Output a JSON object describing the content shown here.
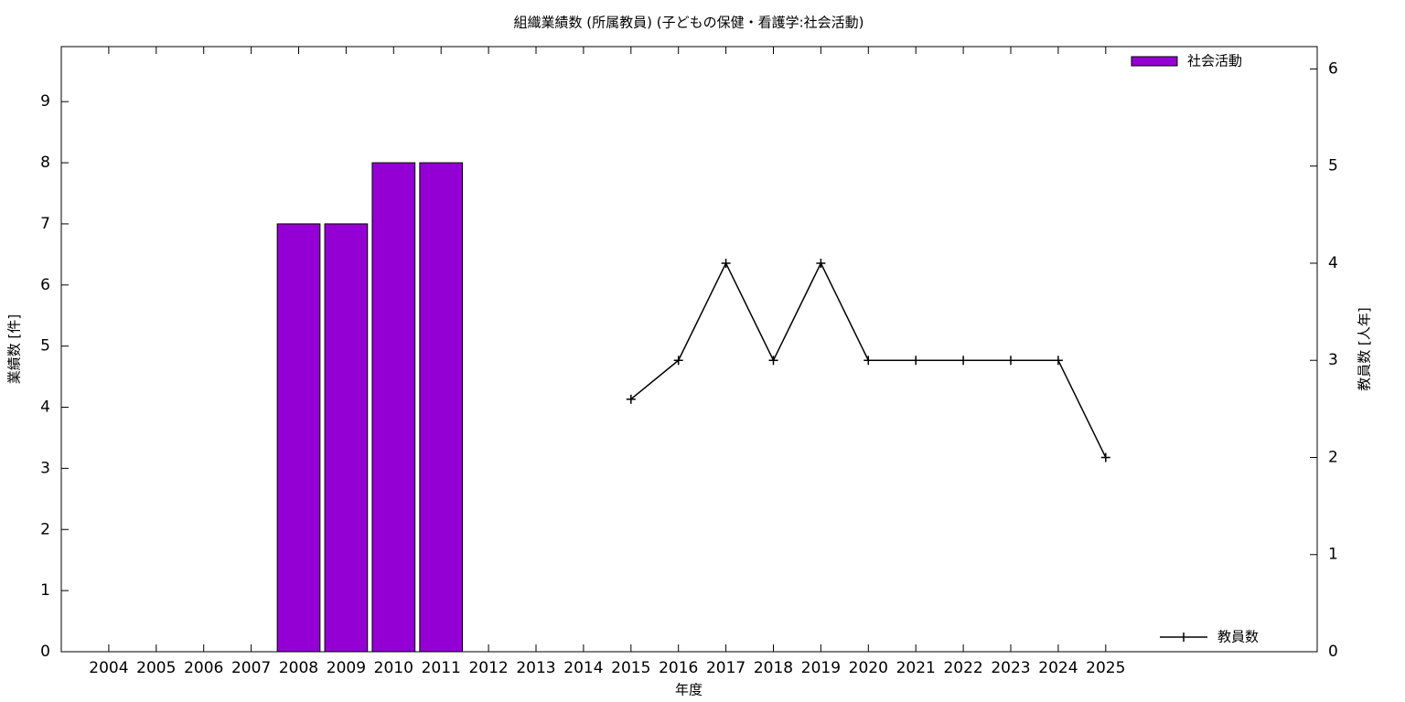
{
  "chart_data": {
    "type": "bar",
    "title": "組織業績数 (所属教員) (子どもの保健・看護学:社会活動)",
    "x_label": "年度",
    "y_label": "業績数 [件]",
    "y2_label": "教員数 [人年]",
    "categories": [
      "2004",
      "2005",
      "2006",
      "2007",
      "2008",
      "2009",
      "2010",
      "2011",
      "2012",
      "2013",
      "2014",
      "2015",
      "2016",
      "2017",
      "2018",
      "2019",
      "2020",
      "2021",
      "2022",
      "2023",
      "2024",
      "2025"
    ],
    "series": [
      {
        "name": "社会活動",
        "type": "bar",
        "color": "#9400d3",
        "values": [
          0,
          0,
          0,
          0,
          7,
          7,
          8,
          8,
          0,
          0,
          0,
          0,
          0,
          0,
          0,
          0,
          0,
          0,
          0,
          0,
          0,
          0
        ]
      },
      {
        "name": "教員数",
        "type": "line",
        "axis": "y2",
        "color": "#000000",
        "values": [
          null,
          null,
          null,
          null,
          null,
          null,
          null,
          null,
          null,
          null,
          null,
          2.6,
          3,
          4,
          3,
          4,
          3,
          3,
          3,
          3,
          3,
          2
        ]
      }
    ],
    "ylim": [
      0,
      9.9
    ],
    "yticks": [
      0,
      1,
      2,
      3,
      4,
      5,
      6,
      7,
      8,
      9
    ],
    "y2lim": [
      0,
      6.23
    ],
    "y2ticks": [
      0,
      1,
      2,
      3,
      4,
      5,
      6
    ]
  }
}
